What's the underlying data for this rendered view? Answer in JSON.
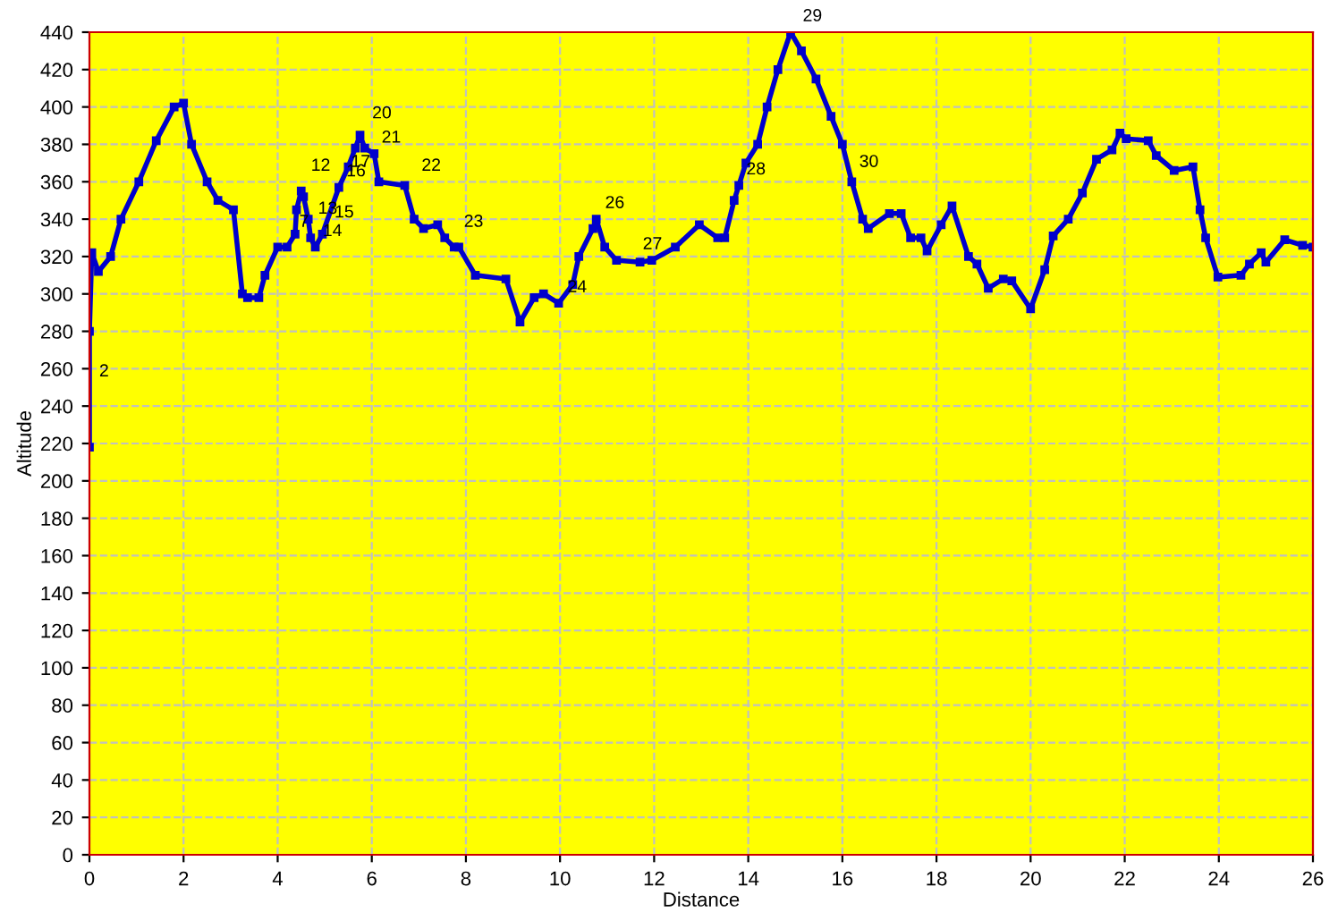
{
  "chart_data": {
    "type": "line",
    "xlabel": "Distance",
    "ylabel": "Altitude",
    "xlim": [
      0,
      26
    ],
    "ylim": [
      0,
      440
    ],
    "xticks": [
      0,
      2,
      4,
      6,
      8,
      10,
      12,
      14,
      16,
      18,
      20,
      22,
      24,
      26
    ],
    "yticks": [
      0,
      20,
      40,
      60,
      80,
      100,
      120,
      140,
      160,
      180,
      200,
      220,
      240,
      260,
      280,
      300,
      320,
      340,
      360,
      380,
      400,
      420,
      440
    ],
    "grid": true,
    "marker": "square",
    "line_style": "solid",
    "series": [
      {
        "color": "#0000cc",
        "x": [
          0,
          0,
          0.05,
          0.19,
          0.45,
          0.67,
          1.05,
          1.42,
          1.8,
          2.0,
          2.17,
          2.5,
          2.73,
          3.06,
          3.25,
          3.36,
          3.6,
          3.73,
          4.0,
          4.2,
          4.37,
          4.4,
          4.5,
          4.55,
          4.65,
          4.7,
          4.8,
          4.95,
          5.3,
          5.5,
          5.65,
          5.75,
          5.85,
          6.05,
          6.15,
          6.7,
          6.9,
          7.1,
          7.4,
          7.55,
          7.75,
          7.85,
          8.2,
          8.85,
          9.15,
          9.45,
          9.65,
          9.97,
          10.27,
          10.4,
          10.7,
          10.77,
          10.95,
          11.2,
          11.7,
          11.95,
          12.45,
          12.96,
          13.35,
          13.5,
          13.7,
          13.8,
          13.95,
          14.2,
          14.4,
          14.63,
          14.9,
          15.13,
          15.44,
          15.76,
          16.0,
          16.2,
          16.43,
          16.55,
          17.0,
          17.25,
          17.45,
          17.67,
          17.8,
          18.1,
          18.33,
          18.68,
          18.86,
          19.1,
          19.42,
          19.6,
          20.0,
          20.3,
          20.48,
          20.8,
          21.1,
          21.4,
          21.73,
          21.9,
          22.03,
          22.5,
          22.67,
          23.05,
          23.45,
          23.6,
          23.72,
          23.98,
          24.47,
          24.65,
          24.9,
          25.0,
          25.4,
          25.78,
          26.0
        ],
        "values": [
          218,
          280,
          322,
          312,
          320,
          340,
          360,
          382,
          400,
          402,
          380,
          360,
          350,
          345,
          300,
          298,
          298,
          310,
          325,
          325,
          332,
          345,
          355,
          352,
          340,
          330,
          325,
          332,
          357,
          368,
          378,
          385,
          378,
          375,
          360,
          358,
          340,
          335,
          337,
          330,
          325,
          325,
          310,
          308,
          285,
          298,
          300,
          295,
          305,
          320,
          335,
          340,
          325,
          318,
          317,
          318,
          325,
          337,
          330,
          330,
          350,
          358,
          370,
          380,
          400,
          420,
          440,
          430,
          415,
          395,
          380,
          360,
          340,
          335,
          343,
          343,
          330,
          330,
          323,
          337,
          347,
          320,
          316,
          303,
          308,
          307,
          292,
          313,
          331,
          340,
          354,
          372,
          377,
          386,
          383,
          382,
          374,
          366,
          368,
          345,
          330,
          309,
          310,
          316,
          322,
          317,
          329,
          326,
          325
        ]
      }
    ],
    "annotations": [
      {
        "text": "2",
        "x": 0.05,
        "y": 250
      },
      {
        "text": "7",
        "x": 4.3,
        "y": 330
      },
      {
        "text": "12",
        "x": 4.55,
        "y": 360
      },
      {
        "text": "13",
        "x": 4.7,
        "y": 337
      },
      {
        "text": "14",
        "x": 4.8,
        "y": 325
      },
      {
        "text": "15",
        "x": 5.05,
        "y": 335
      },
      {
        "text": "16",
        "x": 5.3,
        "y": 357
      },
      {
        "text": "17",
        "x": 5.4,
        "y": 362
      },
      {
        "text": "20",
        "x": 5.85,
        "y": 388
      },
      {
        "text": "21",
        "x": 6.05,
        "y": 375
      },
      {
        "text": "22",
        "x": 6.9,
        "y": 360
      },
      {
        "text": "23",
        "x": 7.8,
        "y": 330
      },
      {
        "text": "24",
        "x": 10.0,
        "y": 295
      },
      {
        "text": "26",
        "x": 10.8,
        "y": 340
      },
      {
        "text": "27",
        "x": 11.6,
        "y": 318
      },
      {
        "text": "28",
        "x": 13.8,
        "y": 358
      },
      {
        "text": "29",
        "x": 15.0,
        "y": 440
      },
      {
        "text": "30",
        "x": 16.2,
        "y": 362
      }
    ]
  }
}
